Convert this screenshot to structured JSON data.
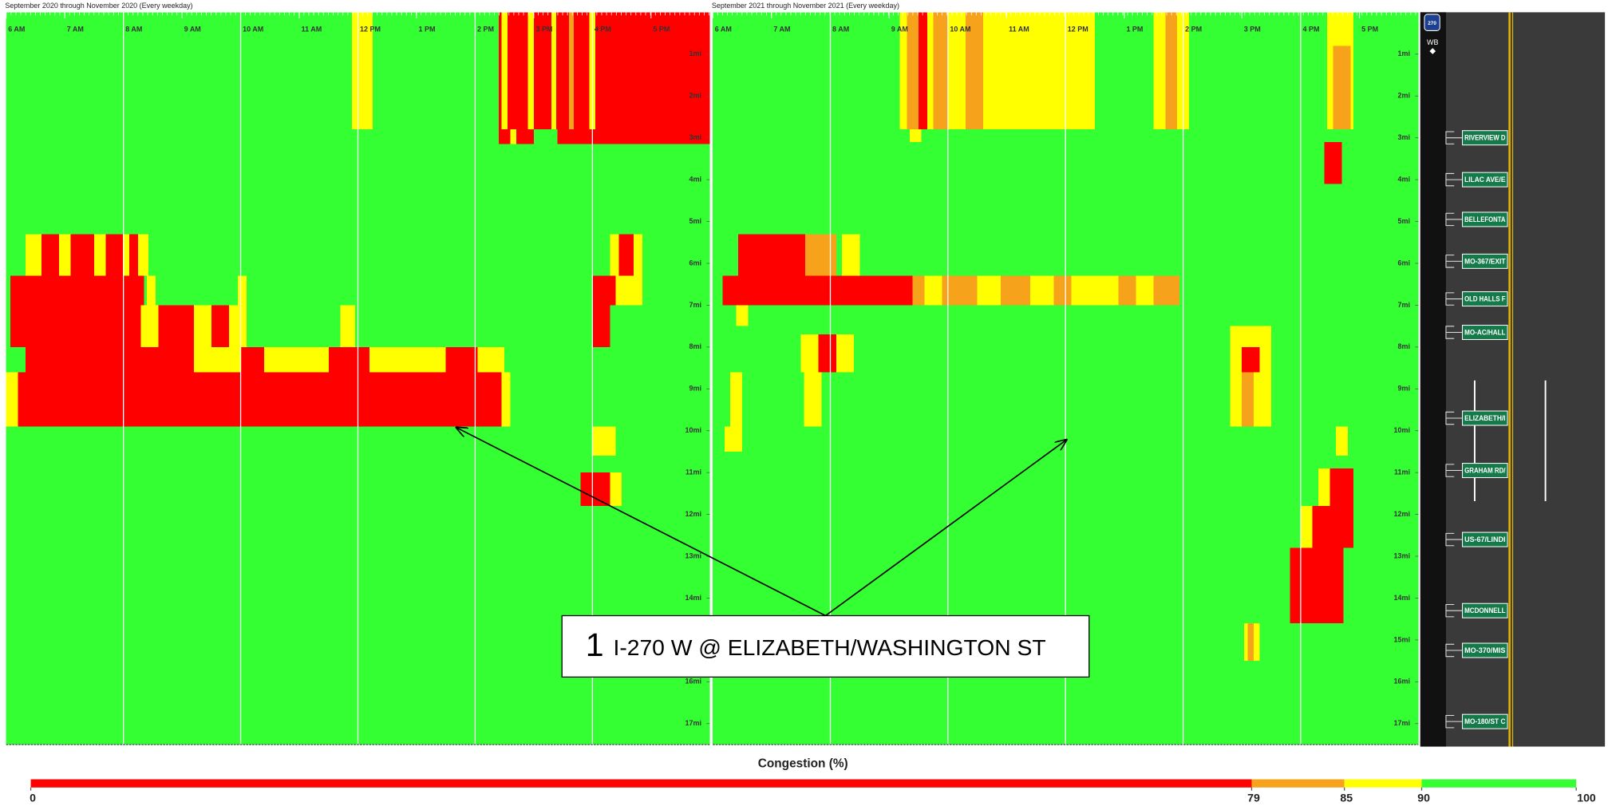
{
  "chart_data": [
    {
      "type": "heatmap",
      "title": "September 2020 through November 2020 (Every weekday)",
      "xlim": [
        6,
        18
      ],
      "ylim": [
        0,
        17.5
      ],
      "xticks": [
        {
          "value": 6,
          "label": "6 AM"
        },
        {
          "value": 7,
          "label": "7 AM"
        },
        {
          "value": 8,
          "label": "8 AM"
        },
        {
          "value": 9,
          "label": "9 AM"
        },
        {
          "value": 10,
          "label": "10 AM"
        },
        {
          "value": 11,
          "label": "11 AM"
        },
        {
          "value": 12,
          "label": "12 PM"
        },
        {
          "value": 13,
          "label": "1 PM"
        },
        {
          "value": 14,
          "label": "2 PM"
        },
        {
          "value": 15,
          "label": "3 PM"
        },
        {
          "value": 16,
          "label": "4 PM"
        },
        {
          "value": 17,
          "label": "5 PM"
        }
      ],
      "xgrid": [
        8,
        10,
        12,
        14,
        16
      ],
      "yticks": [
        {
          "value": 1,
          "label": "1mi"
        },
        {
          "value": 2,
          "label": "2mi"
        },
        {
          "value": 3,
          "label": "3mi"
        },
        {
          "value": 4,
          "label": "4mi"
        },
        {
          "value": 5,
          "label": "5mi"
        },
        {
          "value": 6,
          "label": "6mi"
        },
        {
          "value": 7,
          "label": "7mi"
        },
        {
          "value": 8,
          "label": "8mi"
        },
        {
          "value": 9,
          "label": "9mi"
        },
        {
          "value": 10,
          "label": "10mi"
        },
        {
          "value": 11,
          "label": "11mi"
        },
        {
          "value": 12,
          "label": "12mi"
        },
        {
          "value": 13,
          "label": "13mi"
        },
        {
          "value": 14,
          "label": "14mi"
        },
        {
          "value": 15,
          "label": "15mi"
        },
        {
          "value": 16,
          "label": "16mi"
        },
        {
          "value": 17,
          "label": "17mi"
        }
      ],
      "cells": [
        [
          6,
          18,
          0,
          17.5,
          95
        ],
        [
          11.9,
          12.25,
          0,
          2.8,
          87
        ],
        [
          14.4,
          18,
          0,
          2.8,
          60
        ],
        [
          14.45,
          14.55,
          0,
          2.8,
          87
        ],
        [
          14.9,
          15.0,
          0,
          2.8,
          87
        ],
        [
          15.3,
          15.38,
          0,
          2.8,
          87
        ],
        [
          15.6,
          15.68,
          0,
          2.8,
          82
        ],
        [
          15.95,
          16.05,
          0,
          2.8,
          87
        ],
        [
          14.4,
          18,
          2.8,
          3.15,
          60
        ],
        [
          15.0,
          15.4,
          2.8,
          3.15,
          95
        ],
        [
          14.6,
          14.7,
          2.8,
          3.15,
          87
        ],
        [
          6.33,
          8.43,
          5.3,
          6.3,
          87
        ],
        [
          6.6,
          6.9,
          5.3,
          6.3,
          60
        ],
        [
          7.1,
          7.5,
          5.3,
          6.3,
          60
        ],
        [
          7.7,
          8.0,
          5.3,
          6.3,
          60
        ],
        [
          8.1,
          8.25,
          5.3,
          6.3,
          60
        ],
        [
          16.3,
          16.85,
          5.3,
          6.3,
          87
        ],
        [
          16.45,
          16.7,
          5.3,
          6.3,
          60
        ],
        [
          6.07,
          8.35,
          6.3,
          7.0,
          60
        ],
        [
          8.4,
          8.55,
          6.3,
          7.0,
          87
        ],
        [
          9.95,
          10.1,
          6.3,
          7.0,
          87
        ],
        [
          16.0,
          16.85,
          6.3,
          7.0,
          60
        ],
        [
          16.4,
          16.85,
          6.3,
          7.0,
          87
        ],
        [
          6.07,
          8.3,
          7.0,
          8.0,
          60
        ],
        [
          8.3,
          10.1,
          7.0,
          8.0,
          87
        ],
        [
          8.6,
          9.2,
          7.0,
          8.0,
          60
        ],
        [
          9.5,
          9.8,
          7.0,
          8.0,
          60
        ],
        [
          11.7,
          11.95,
          7.0,
          8.0,
          87
        ],
        [
          16.0,
          16.3,
          7.0,
          8.0,
          60
        ],
        [
          6.33,
          14.04,
          8.0,
          8.6,
          60
        ],
        [
          9.2,
          10.0,
          8.0,
          8.6,
          87
        ],
        [
          10.4,
          11.5,
          8.0,
          8.6,
          87
        ],
        [
          12.2,
          13.5,
          8.0,
          8.6,
          87
        ],
        [
          14.04,
          14.5,
          8.0,
          8.6,
          87
        ],
        [
          6.1,
          14.55,
          8.6,
          9.9,
          60
        ],
        [
          6.0,
          6.2,
          8.6,
          9.9,
          87
        ],
        [
          14.45,
          14.6,
          8.6,
          9.9,
          87
        ],
        [
          16.0,
          16.4,
          9.9,
          10.6,
          87
        ],
        [
          15.8,
          16.4,
          11.0,
          11.8,
          60
        ],
        [
          16.3,
          16.5,
          11.0,
          11.8,
          87
        ]
      ]
    },
    {
      "type": "heatmap",
      "title": "September 2021 through November 2021 (Every weekday)",
      "xlim": [
        6,
        18
      ],
      "ylim": [
        0,
        17.5
      ],
      "xticks": [
        {
          "value": 6,
          "label": "6 AM"
        },
        {
          "value": 7,
          "label": "7 AM"
        },
        {
          "value": 8,
          "label": "8 AM"
        },
        {
          "value": 9,
          "label": "9 AM"
        },
        {
          "value": 10,
          "label": "10 AM"
        },
        {
          "value": 11,
          "label": "11 AM"
        },
        {
          "value": 12,
          "label": "12 PM"
        },
        {
          "value": 13,
          "label": "1 PM"
        },
        {
          "value": 14,
          "label": "2 PM"
        },
        {
          "value": 15,
          "label": "3 PM"
        },
        {
          "value": 16,
          "label": "4 PM"
        },
        {
          "value": 17,
          "label": "5 PM"
        }
      ],
      "xgrid": [
        8,
        10,
        12,
        14,
        16
      ],
      "yticks": [
        {
          "value": 1,
          "label": "1mi"
        },
        {
          "value": 2,
          "label": "2mi"
        },
        {
          "value": 3,
          "label": "3mi"
        },
        {
          "value": 4,
          "label": "4mi"
        },
        {
          "value": 5,
          "label": "5mi"
        },
        {
          "value": 6,
          "label": "6mi"
        },
        {
          "value": 7,
          "label": "7mi"
        },
        {
          "value": 8,
          "label": "8mi"
        },
        {
          "value": 9,
          "label": "9mi"
        },
        {
          "value": 10,
          "label": "10mi"
        },
        {
          "value": 11,
          "label": "11mi"
        },
        {
          "value": 12,
          "label": "12mi"
        },
        {
          "value": 13,
          "label": "13mi"
        },
        {
          "value": 14,
          "label": "14mi"
        },
        {
          "value": 15,
          "label": "15mi"
        },
        {
          "value": 16,
          "label": "16mi"
        },
        {
          "value": 17,
          "label": "17mi"
        }
      ],
      "cells": [
        [
          6,
          18,
          0,
          17.5,
          95
        ],
        [
          9.18,
          12.5,
          0,
          2.8,
          87
        ],
        [
          9.3,
          9.5,
          0,
          2.8,
          82
        ],
        [
          9.5,
          9.65,
          0,
          2.8,
          60
        ],
        [
          9.75,
          10.0,
          0,
          2.8,
          82
        ],
        [
          10.3,
          10.6,
          0,
          2.8,
          82
        ],
        [
          13.5,
          14.1,
          0,
          2.8,
          87
        ],
        [
          13.7,
          13.9,
          0,
          2.8,
          82
        ],
        [
          16.45,
          16.9,
          0,
          2.8,
          87
        ],
        [
          16.55,
          16.85,
          0.8,
          2.8,
          82
        ],
        [
          9.35,
          9.55,
          2.8,
          3.1,
          87
        ],
        [
          16.4,
          16.7,
          3.1,
          4.1,
          60
        ],
        [
          6.43,
          7.57,
          5.3,
          6.3,
          60
        ],
        [
          7.57,
          8.1,
          5.3,
          6.3,
          82
        ],
        [
          8.2,
          8.5,
          5.3,
          6.3,
          87
        ],
        [
          6.17,
          9.4,
          6.3,
          7.0,
          60
        ],
        [
          9.4,
          13.94,
          6.3,
          7.0,
          82
        ],
        [
          9.6,
          9.9,
          6.3,
          7.0,
          87
        ],
        [
          10.5,
          10.9,
          6.3,
          7.0,
          87
        ],
        [
          11.4,
          11.8,
          6.3,
          7.0,
          87
        ],
        [
          12.1,
          12.9,
          6.3,
          7.0,
          87
        ],
        [
          13.2,
          13.5,
          6.3,
          7.0,
          87
        ],
        [
          6.4,
          6.6,
          7.0,
          7.5,
          87
        ],
        [
          7.5,
          8.4,
          7.7,
          8.6,
          87
        ],
        [
          7.8,
          8.1,
          7.7,
          8.6,
          60
        ],
        [
          7.55,
          7.85,
          8.6,
          9.9,
          87
        ],
        [
          6.3,
          6.5,
          8.6,
          9.9,
          87
        ],
        [
          14.8,
          15.5,
          7.5,
          9.9,
          87
        ],
        [
          15.0,
          15.3,
          8.0,
          8.6,
          60
        ],
        [
          15.0,
          15.2,
          8.6,
          9.9,
          82
        ],
        [
          6.2,
          6.5,
          9.9,
          10.5,
          87
        ],
        [
          16.6,
          16.8,
          9.9,
          10.6,
          87
        ],
        [
          16.3,
          16.9,
          10.9,
          11.8,
          60
        ],
        [
          16.3,
          16.5,
          10.9,
          11.8,
          87
        ],
        [
          16.12,
          16.9,
          11.8,
          12.8,
          60
        ],
        [
          16.0,
          16.2,
          11.8,
          12.8,
          87
        ],
        [
          15.82,
          16.73,
          12.8,
          14.6,
          60
        ],
        [
          15.04,
          15.3,
          14.6,
          15.5,
          87
        ],
        [
          15.1,
          15.2,
          14.6,
          15.5,
          82
        ]
      ]
    },
    {
      "type": "colorbar",
      "title": "Congestion (%)",
      "ticks": [
        0,
        79,
        85,
        90,
        100
      ],
      "colors": [
        "#ff0000",
        "#f7a21b",
        "#ffff00",
        "#33ff33"
      ]
    }
  ],
  "road": {
    "shield": "270",
    "direction": "WB",
    "exits": [
      {
        "label": "RIVERVIEW D",
        "mile": 3
      },
      {
        "label": "LILAC AVE/E",
        "mile": 4
      },
      {
        "label": "BELLEFONTA",
        "mile": 4.95
      },
      {
        "label": "MO-367/EXIT",
        "mile": 5.95
      },
      {
        "label": "OLD HALLS F",
        "mile": 6.85
      },
      {
        "label": "MO-AC/HALL",
        "mile": 7.65
      },
      {
        "label": "ELIZABETH/I",
        "mile": 9.7
      },
      {
        "label": "GRAHAM RD/",
        "mile": 10.95
      },
      {
        "label": "US-67/LINDI",
        "mile": 12.6
      },
      {
        "label": "MCDONNELL",
        "mile": 14.3
      },
      {
        "label": "MO-370/MIS",
        "mile": 15.25
      },
      {
        "label": "MO-180/ST C",
        "mile": 16.95
      }
    ]
  },
  "annotation": {
    "number": "1",
    "text": "I-270 W @ ELIZABETH/WASHINGTON ST"
  }
}
